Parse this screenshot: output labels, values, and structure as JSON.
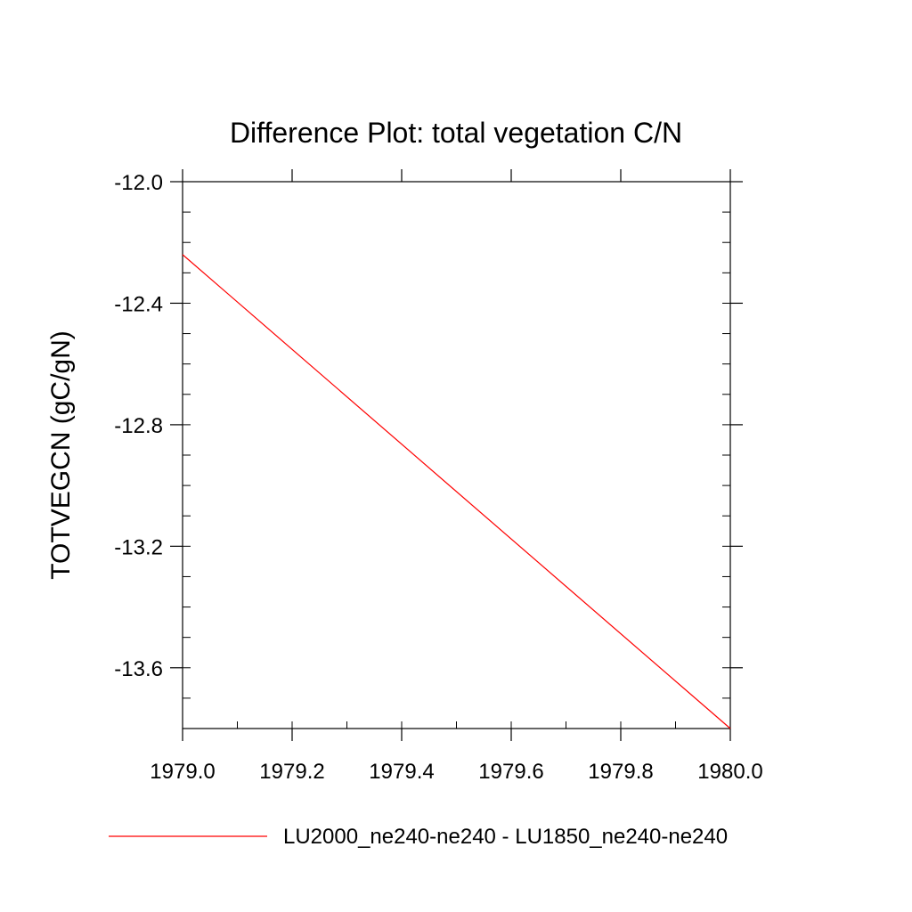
{
  "chart_data": {
    "type": "line",
    "title": "Difference Plot: total vegetation C/N",
    "xlabel": "",
    "ylabel": "TOTVEGCN  (gC/gN)",
    "xlim": [
      1979.0,
      1980.0
    ],
    "ylim": [
      -13.8,
      -12.0
    ],
    "x_ticks": [
      1979.0,
      1979.2,
      1979.4,
      1979.6,
      1979.8,
      1980.0
    ],
    "x_tick_labels": [
      "1979.0",
      "1979.2",
      "1979.4",
      "1979.6",
      "1979.8",
      "1980.0"
    ],
    "y_ticks": [
      -12.0,
      -12.4,
      -12.8,
      -13.2,
      -13.6
    ],
    "y_tick_labels": [
      "-12.0",
      "-12.4",
      "-12.8",
      "-13.2",
      "-13.6"
    ],
    "y_minor_step": 0.1,
    "x_minor_step": 0.1,
    "grid": false,
    "legend_position": "bottom",
    "series": [
      {
        "name": "LU2000_ne240-ne240 - LU1850_ne240-ne240",
        "color": "#ff0000",
        "x": [
          1979.0,
          1980.0
        ],
        "y": [
          -12.24,
          -13.8
        ]
      }
    ]
  }
}
